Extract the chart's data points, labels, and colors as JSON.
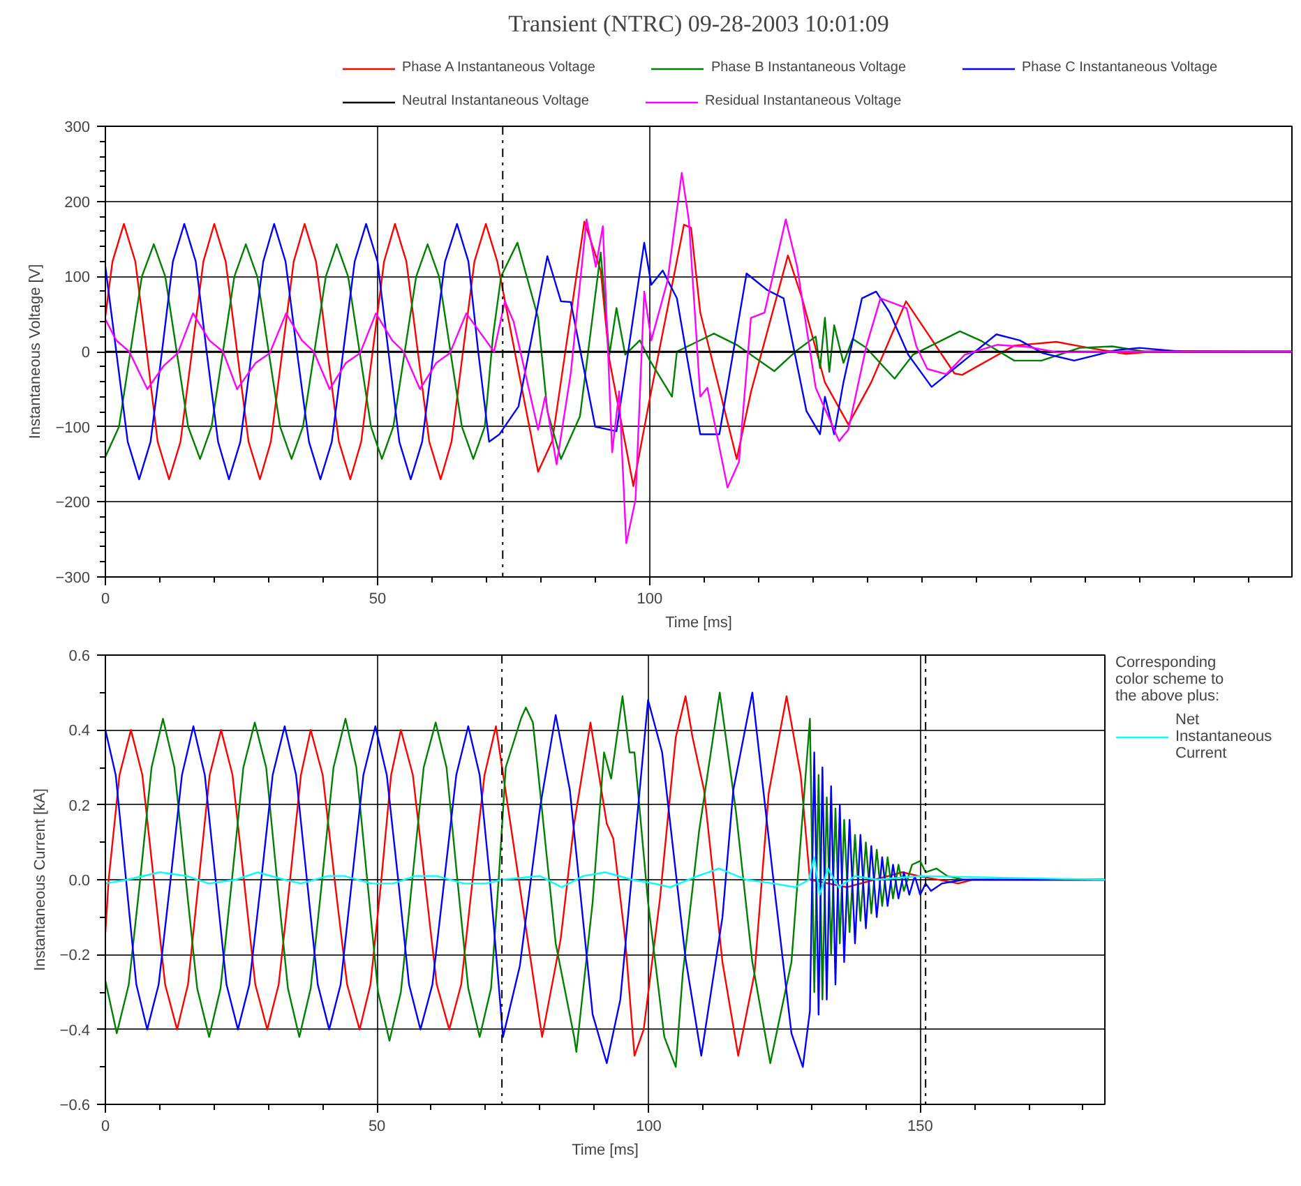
{
  "chart_data": [
    {
      "type": "line",
      "title": "Transient (NTRC) 09-28-2003 10:01:09",
      "xlabel": "Time [ms]",
      "ylabel": "Instantaneous Voltage [V]",
      "xlim": [
        0,
        218
      ],
      "ylim": [
        -300,
        300
      ],
      "xticks": [
        0,
        {
          "value": 10,
          "label": null
        },
        {
          "value": 20,
          "label": null
        },
        {
          "value": 30,
          "label": null
        },
        {
          "value": 40,
          "label": null
        },
        50,
        {
          "value": 60,
          "label": null
        },
        {
          "value": 70,
          "label": null
        },
        {
          "value": 80,
          "label": null
        },
        {
          "value": 90,
          "label": null
        },
        100,
        {
          "value": 110,
          "label": null
        },
        {
          "value": 120,
          "label": null
        },
        {
          "value": 130,
          "label": null
        },
        {
          "value": 140,
          "label": null
        },
        {
          "value": 150,
          "label": null
        },
        {
          "value": 160,
          "label": null
        },
        {
          "value": 170,
          "label": null
        },
        {
          "value": 180,
          "label": null
        },
        {
          "value": 190,
          "label": null
        },
        {
          "value": 200,
          "label": null
        },
        {
          "value": 210,
          "label": null
        }
      ],
      "yticks": [
        -300,
        {
          "value": -280,
          "label": null
        },
        {
          "value": -260,
          "label": null
        },
        {
          "value": -240,
          "label": null
        },
        {
          "value": -220,
          "label": null
        },
        -200,
        {
          "value": -180,
          "label": null
        },
        {
          "value": -160,
          "label": null
        },
        {
          "value": -140,
          "label": null
        },
        {
          "value": -120,
          "label": null
        },
        -100,
        {
          "value": -80,
          "label": null
        },
        {
          "value": -60,
          "label": null
        },
        {
          "value": -40,
          "label": null
        },
        {
          "value": -20,
          "label": null
        },
        0,
        {
          "value": 20,
          "label": null
        },
        {
          "value": 40,
          "label": null
        },
        {
          "value": 60,
          "label": null
        },
        {
          "value": 80,
          "label": null
        },
        100,
        {
          "value": 120,
          "label": null
        },
        {
          "value": 140,
          "label": null
        },
        {
          "value": 160,
          "label": null
        },
        {
          "value": 180,
          "label": null
        },
        200,
        {
          "value": 220,
          "label": null
        },
        {
          "value": 240,
          "label": null
        },
        {
          "value": 260,
          "label": null
        },
        {
          "value": 280,
          "label": null
        },
        300
      ],
      "grid": true,
      "legend": "top",
      "ref_lines": [
        {
          "axis": "x",
          "value": 73,
          "color": "#000000",
          "line_style": "dashdot"
        }
      ],
      "series": [
        {
          "name": "Phase A Instantaneous Voltage",
          "color": "#ff0000",
          "x": [
            0,
            1.3,
            3.4,
            5.5,
            7.6,
            9.6,
            11.7,
            13.8,
            15.9,
            18.0,
            20.0,
            22.1,
            24.2,
            26.3,
            28.4,
            30.4,
            32.5,
            34.6,
            36.6,
            38.7,
            40.8,
            42.9,
            45.0,
            47.0,
            49.1,
            51.2,
            53.2,
            55.3,
            57.4,
            59.5,
            61.6,
            63.6,
            65.7,
            67.8,
            69.9,
            72.0,
            79.5,
            82.1,
            88,
            91,
            92.6,
            97,
            99.9,
            106.3,
            107.6,
            109.3,
            116,
            118.6,
            125.4,
            128,
            132.2,
            136.5,
            140.7,
            147.1,
            156,
            157.4,
            167,
            174.7,
            180.7,
            187.5,
            194,
            218
          ],
          "values": [
            47,
            120,
            170,
            120,
            0,
            -120,
            -170,
            -120,
            0,
            120,
            170,
            120,
            0,
            -120,
            -170,
            -120,
            0,
            120,
            170,
            120,
            0,
            -120,
            -170,
            -120,
            0,
            120,
            170,
            120,
            0,
            -120,
            -170,
            -120,
            0,
            120,
            170,
            120,
            -160,
            -119,
            173,
            108,
            -11,
            -179,
            -67,
            169,
            165,
            52,
            -143,
            -54,
            128,
            71,
            -41,
            -97,
            -41,
            67,
            -29,
            -31,
            8,
            13,
            5,
            -3,
            1,
            0
          ]
        },
        {
          "name": "Phase B Instantaneous Voltage",
          "color": "#008000",
          "x": [
            0,
            2.5,
            4.6,
            6.7,
            8.9,
            11.0,
            13.1,
            15.2,
            17.4,
            19.5,
            21.6,
            23.7,
            25.8,
            27.9,
            30.0,
            32.1,
            34.2,
            36.3,
            38.4,
            40.5,
            42.5,
            44.6,
            46.7,
            48.8,
            50.8,
            52.9,
            55.0,
            57.1,
            59.2,
            61.3,
            63.4,
            65.5,
            67.6,
            69.7,
            71.2,
            72.7,
            75.7,
            79.5,
            81.2,
            83.7,
            87.2,
            91,
            92.6,
            93.9,
            95.5,
            98.2,
            99.9,
            104.1,
            105,
            111.8,
            116,
            122.9,
            127.1,
            130.5,
            131.3,
            132.2,
            133,
            133.9,
            135.6,
            137.3,
            139.8,
            145,
            148.4,
            157,
            161,
            167,
            172,
            179,
            185,
            191,
            218
          ],
          "values": [
            -140,
            -100,
            0,
            100,
            143,
            100,
            0,
            -100,
            -143,
            -100,
            0,
            100,
            143,
            100,
            0,
            -100,
            -143,
            -100,
            0,
            100,
            143,
            100,
            0,
            -100,
            -143,
            -100,
            0,
            100,
            143,
            100,
            0,
            -100,
            -143,
            -100,
            20,
            100,
            145,
            45,
            -79,
            -143,
            -86,
            132,
            -4,
            58,
            -4,
            15,
            -10,
            -60,
            0,
            24,
            9,
            -26,
            2,
            20,
            -22,
            45,
            -27,
            35,
            -15,
            17,
            5,
            -36,
            -4,
            27,
            14,
            -12,
            -12,
            5,
            7,
            0,
            0
          ]
        },
        {
          "name": "Phase C Instantaneous Voltage",
          "color": "#0000ff",
          "x": [
            0,
            2.0,
            4.1,
            6.2,
            8.3,
            10.4,
            12.4,
            14.5,
            16.6,
            18.6,
            20.7,
            22.7,
            24.8,
            26.9,
            29.0,
            31.0,
            33.1,
            35.2,
            37.4,
            39.5,
            41.6,
            43.7,
            45.8,
            47.9,
            50.0,
            52.0,
            54.0,
            56.1,
            58.2,
            60.3,
            62.4,
            64.6,
            66.7,
            68.5,
            70.5,
            72.4,
            75.9,
            81.2,
            83.7,
            85.5,
            90,
            93.9,
            99,
            100.3,
            102.4,
            105,
            109.3,
            112.8,
            117.8,
            121.6,
            124.6,
            128.8,
            131.3,
            132.2,
            133.9,
            135.6,
            139,
            141.6,
            144.1,
            147.5,
            151.8,
            155.2,
            163.7,
            168,
            172.2,
            178,
            185.7,
            190,
            197.6,
            218
          ],
          "values": [
            113,
            0,
            -120,
            -170,
            -120,
            0,
            120,
            170,
            120,
            0,
            -120,
            -170,
            -120,
            0,
            120,
            170,
            120,
            0,
            -120,
            -170,
            -120,
            0,
            120,
            170,
            120,
            0,
            -120,
            -170,
            -120,
            0,
            120,
            170,
            120,
            0,
            -120,
            -110,
            -73,
            127,
            67,
            66,
            -100,
            -106,
            145,
            89,
            108,
            71,
            -110,
            -110,
            104,
            82,
            71,
            -79,
            -110,
            -60,
            -110,
            -41,
            71,
            80,
            52,
            -4,
            -47,
            -27,
            23,
            15,
            -2,
            -12,
            2,
            5,
            0,
            0
          ]
        },
        {
          "name": "Neutral Instantaneous Voltage",
          "color": "#000000",
          "x": [
            0,
            218
          ],
          "values": [
            0,
            0
          ]
        },
        {
          "name": "Residual Instantaneous Voltage",
          "color": "#ff00ff",
          "x": [
            0,
            2,
            4.4,
            7.7,
            10.7,
            13.3,
            16.1,
            19.1,
            21.6,
            24.2,
            27.6,
            30.2,
            33.2,
            36.1,
            38.3,
            41.2,
            44.2,
            46.8,
            49.7,
            52.7,
            54.8,
            57.8,
            60.8,
            63.3,
            66.3,
            69.3,
            71.4,
            73.4,
            75,
            79.5,
            80.8,
            82.9,
            85.5,
            88.4,
            90.1,
            91.4,
            93.1,
            94.4,
            95.7,
            97.4,
            99,
            100.3,
            103.3,
            105.9,
            107.2,
            109.3,
            110.6,
            114.3,
            116.4,
            118.6,
            121.1,
            125,
            127.1,
            130.5,
            134.8,
            136.5,
            139.8,
            142.4,
            147.2,
            149,
            151,
            154.5,
            157.9,
            163.8,
            169.8,
            174.9,
            185,
            218
          ],
          "values": [
            43,
            15,
            0,
            -50,
            -19,
            -2,
            51,
            15,
            0,
            -50,
            -15,
            -2,
            51,
            15,
            0,
            -50,
            -15,
            -2,
            51,
            15,
            0,
            -50,
            -15,
            -2,
            51,
            21,
            0,
            67,
            40,
            -104,
            -60,
            -150,
            -29,
            176,
            113,
            167,
            -134,
            -53,
            -255,
            -197,
            80,
            15,
            95,
            238,
            175,
            -60,
            -48,
            -181,
            -147,
            45,
            52,
            176,
            113,
            -48,
            -119,
            -104,
            7,
            71,
            58,
            7,
            -23,
            -30,
            -4,
            9,
            6,
            -1,
            0,
            0
          ]
        }
      ]
    },
    {
      "type": "line",
      "xlabel": "Time [ms]",
      "ylabel": "Instantaneous Current [kA]",
      "legend_title": "Corresponding color scheme to the above plus:",
      "xlim": [
        0,
        184
      ],
      "ylim": [
        -0.6,
        0.6
      ],
      "xticks": [
        0,
        {
          "value": 10,
          "label": null
        },
        {
          "value": 20,
          "label": null
        },
        {
          "value": 30,
          "label": null
        },
        {
          "value": 40,
          "label": null
        },
        50,
        {
          "value": 60,
          "label": null
        },
        {
          "value": 70,
          "label": null
        },
        {
          "value": 80,
          "label": null
        },
        {
          "value": 90,
          "label": null
        },
        100,
        {
          "value": 110,
          "label": null
        },
        {
          "value": 120,
          "label": null
        },
        {
          "value": 130,
          "label": null
        },
        {
          "value": 140,
          "label": null
        },
        150,
        {
          "value": 160,
          "label": null
        },
        {
          "value": 170,
          "label": null
        },
        {
          "value": 180,
          "label": null
        }
      ],
      "yticks": [
        -0.6,
        {
          "value": -0.5,
          "label": null
        },
        -0.4,
        {
          "value": -0.3,
          "label": null
        },
        -0.2,
        {
          "value": -0.1,
          "label": null
        },
        {
          "value": 0,
          "label": "0.0"
        },
        {
          "value": 0.1,
          "label": null
        },
        0.2,
        {
          "value": 0.3,
          "label": null
        },
        0.4,
        {
          "value": 0.5,
          "label": null
        },
        0.6
      ],
      "grid": true,
      "legend": "right",
      "ref_lines": [
        {
          "axis": "x",
          "value": 73,
          "color": "#000000",
          "line_style": "dashdot"
        },
        {
          "axis": "x",
          "value": 151,
          "color": "#000000",
          "line_style": "dashdot"
        }
      ],
      "series": [
        {
          "color": "#ff0000",
          "x": [
            0,
            0.6,
            2.6,
            4.7,
            6.8,
            8.9,
            11.0,
            13.2,
            15.2,
            17.2,
            19.2,
            21.3,
            23.4,
            25.5,
            27.6,
            29.8,
            31.9,
            34.0,
            36.0,
            37.8,
            40.0,
            42.2,
            44.5,
            46.8,
            48.8,
            50.8,
            52.6,
            54.4,
            56.6,
            58.8,
            61.0,
            63.3,
            65.5,
            67.6,
            69.8,
            71.9,
            76.1,
            80.4,
            83.8,
            86.3,
            89.3,
            92.3,
            93.5,
            95.7,
            97.4,
            99.1,
            102.1,
            105,
            106.8,
            108.1,
            110.2,
            113.6,
            116.5,
            119.5,
            122.1,
            125.4,
            128,
            129.7,
            136.5,
            146.7,
            149.7,
            157,
            159.6,
            184
          ],
          "values": [
            -0.14,
            0,
            0.28,
            0.4,
            0.28,
            0,
            -0.28,
            -0.4,
            -0.28,
            0,
            0.28,
            0.4,
            0.28,
            0,
            -0.28,
            -0.4,
            -0.28,
            0,
            0.28,
            0.4,
            0.28,
            0,
            -0.28,
            -0.4,
            -0.28,
            0,
            0.28,
            0.4,
            0.28,
            0,
            -0.28,
            -0.4,
            -0.28,
            0,
            0.28,
            0.41,
            0,
            -0.42,
            -0.16,
            0.15,
            0.42,
            0.15,
            0.11,
            -0.16,
            -0.47,
            -0.4,
            -0.05,
            0.38,
            0.49,
            0.38,
            0.24,
            -0.22,
            -0.47,
            -0.25,
            0.23,
            0.49,
            0.28,
            0,
            -0.02,
            0.02,
            0.01,
            -0.01,
            0,
            0
          ]
        },
        {
          "color": "#008000",
          "x": [
            0,
            2.1,
            4.3,
            6.4,
            8.5,
            10.6,
            12.7,
            14.8,
            16.9,
            19.1,
            21.2,
            23.3,
            25.4,
            27.5,
            29.6,
            31.6,
            33.6,
            35.7,
            37.8,
            39.9,
            42.0,
            44.2,
            46.2,
            48.2,
            50.2,
            52.3,
            54.4,
            56.5,
            58.6,
            60.8,
            62.8,
            64.8,
            66.8,
            68.9,
            71.0,
            72.4,
            73.7,
            76.5,
            77.4,
            78.7,
            79.5,
            82.9,
            86.3,
            86.7,
            89.7,
            91.8,
            93.1,
            95.2,
            96.5,
            97.4,
            99.9,
            102.9,
            105,
            106.3,
            109.3,
            113.1,
            116.1,
            119.1,
            122.4,
            126.3,
            129.7,
            130.5,
            131.3,
            132.0,
            132.8,
            133.6,
            134.4,
            135.2,
            136.0,
            137,
            138,
            139,
            140,
            141,
            142,
            143,
            144,
            145,
            146,
            147,
            148.5,
            150,
            151,
            153,
            155,
            158,
            184
          ],
          "values": [
            -0.27,
            -0.41,
            -0.28,
            0,
            0.3,
            0.43,
            0.3,
            0,
            -0.29,
            -0.42,
            -0.29,
            0,
            0.3,
            0.42,
            0.3,
            0,
            -0.29,
            -0.42,
            -0.29,
            0,
            0.3,
            0.43,
            0.3,
            0,
            -0.3,
            -0.43,
            -0.3,
            0,
            0.3,
            0.42,
            0.3,
            0,
            -0.29,
            -0.42,
            -0.29,
            0,
            0.3,
            0.43,
            0.46,
            0.42,
            0.31,
            -0.17,
            -0.42,
            -0.46,
            -0.06,
            0.34,
            0.27,
            0.49,
            0.34,
            0.34,
            -0.06,
            -0.42,
            -0.5,
            -0.25,
            0.13,
            0.5,
            0.18,
            -0.22,
            -0.49,
            -0.22,
            0.43,
            -0.3,
            0.28,
            -0.32,
            0.22,
            -0.2,
            0.19,
            -0.17,
            0.16,
            -0.14,
            0.12,
            -0.11,
            0.1,
            -0.09,
            0.08,
            -0.07,
            0.06,
            -0.05,
            0.04,
            -0.03,
            0.04,
            0.05,
            0.02,
            0.03,
            0.01,
            0,
            0
          ]
        },
        {
          "color": "#0000ff",
          "x": [
            0,
            1.9,
            3.8,
            5.7,
            7.7,
            9.8,
            12.0,
            14.1,
            16.2,
            18.3,
            20.3,
            22.3,
            24.4,
            26.5,
            28.7,
            30.8,
            33.0,
            35.1,
            37.1,
            39.1,
            41.2,
            43.3,
            45.4,
            47.5,
            49.7,
            51.8,
            53.9,
            55.9,
            58.0,
            60.2,
            62.4,
            64.6,
            66.8,
            68.9,
            70.8,
            73.2,
            76.3,
            80.1,
            82.9,
            85.5,
            89.7,
            92.3,
            94.8,
            99.9,
            102.5,
            106.8,
            109.7,
            113.6,
            115.6,
            119.1,
            122.9,
            126.3,
            128.4,
            129.7,
            130.5,
            131.3,
            132,
            132.8,
            133.6,
            134.4,
            135.2,
            136,
            137,
            138,
            139,
            140,
            141,
            142,
            143,
            144,
            145,
            146,
            147,
            148,
            149,
            150,
            151,
            152,
            154,
            158,
            184
          ],
          "values": [
            0.4,
            0.28,
            0,
            -0.28,
            -0.4,
            -0.28,
            0,
            0.28,
            0.41,
            0.28,
            0,
            -0.28,
            -0.4,
            -0.28,
            0,
            0.28,
            0.41,
            0.28,
            0,
            -0.28,
            -0.4,
            -0.28,
            0,
            0.28,
            0.41,
            0.28,
            0,
            -0.28,
            -0.4,
            -0.28,
            0,
            0.28,
            0.41,
            0.28,
            0,
            -0.42,
            -0.23,
            0.2,
            0.44,
            0.24,
            -0.36,
            -0.49,
            -0.32,
            0.48,
            0.34,
            -0.21,
            -0.47,
            -0.1,
            0.24,
            0.5,
            0.01,
            -0.41,
            -0.5,
            -0.35,
            0.34,
            -0.36,
            0.3,
            -0.32,
            0.25,
            -0.28,
            0.2,
            -0.22,
            0.16,
            -0.17,
            0.12,
            -0.13,
            0.09,
            -0.1,
            0.06,
            -0.07,
            0.04,
            -0.05,
            0.02,
            -0.04,
            0.01,
            -0.04,
            -0.01,
            -0.03,
            -0.01,
            0,
            0
          ]
        },
        {
          "name": "Net Instantaneous Current",
          "color": "#00ffff",
          "x": [
            0,
            4,
            10,
            15,
            19,
            24,
            28,
            33,
            36,
            41,
            44,
            49,
            53,
            57,
            61,
            66,
            70,
            73,
            80,
            84,
            88,
            92,
            97,
            101,
            104,
            109,
            113,
            118,
            123,
            127,
            129.5,
            130.5,
            131.5,
            133,
            135,
            138,
            142,
            150,
            184
          ],
          "values": [
            -0.01,
            0,
            0.02,
            0.01,
            -0.01,
            0,
            0.02,
            0,
            -0.01,
            0.01,
            0.01,
            -0.01,
            -0.01,
            0.01,
            0.01,
            -0.01,
            -0.01,
            0,
            0.01,
            -0.02,
            0.01,
            0.02,
            0,
            -0.01,
            -0.02,
            0.01,
            0.03,
            0,
            -0.01,
            -0.02,
            0,
            0.06,
            -0.04,
            0.03,
            -0.02,
            0.01,
            0,
            0.01,
            0
          ]
        }
      ]
    }
  ]
}
